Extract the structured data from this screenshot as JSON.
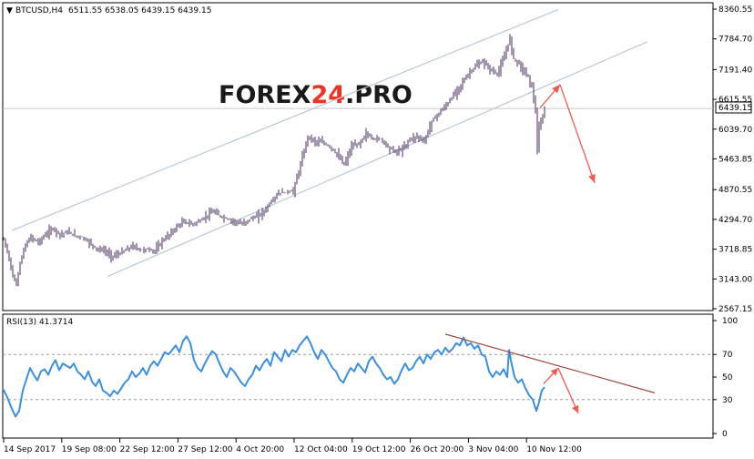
{
  "header": {
    "symbol": "BTCUSD,H4",
    "ohlc": "6511.55 6538.05 6439.15 6439.15"
  },
  "watermark": {
    "part1": "FOREX",
    "part2": "24",
    "part3": ".PRO"
  },
  "price_label": "6439.15",
  "rsi": {
    "label": "RSI(13) 41.3714"
  },
  "colors": {
    "bar": "#4a2b5c",
    "channel": "#b7c8d6",
    "rsi_line": "#3a8fe0",
    "trend": "#9c4a40",
    "arrow": "#f25a4f",
    "logo_dark": "#1a1a1a",
    "logo_accent": "#ef3323"
  },
  "chart_data": [
    {
      "type": "bar",
      "title": "BTCUSD,H4",
      "y_ticks": [
        "8360.55",
        "7784.70",
        "7191.40",
        "6615.55",
        "6039.70",
        "5463.85",
        "4870.55",
        "4294.70",
        "3718.85",
        "3143.00",
        "2567.15"
      ],
      "ylim": [
        2567.15,
        8360.55
      ],
      "x_ticks": [
        "14 Sep 2017",
        "19 Sep 08:00",
        "22 Sep 12:00",
        "27 Sep 12:00",
        "4 Oct 20:00",
        "12 Oct 04:00",
        "19 Oct 12:00",
        "26 Oct 20:00",
        "3 Nov 04:00",
        "10 Nov 12:00"
      ],
      "last_price": 6439.15,
      "close_path": [
        [
          0,
          3900
        ],
        [
          6,
          3550
        ],
        [
          10,
          3180
        ],
        [
          14,
          3050
        ],
        [
          18,
          3450
        ],
        [
          24,
          3800
        ],
        [
          30,
          3950
        ],
        [
          38,
          3850
        ],
        [
          46,
          4000
        ],
        [
          54,
          4120
        ],
        [
          62,
          4000
        ],
        [
          70,
          4050
        ],
        [
          78,
          3980
        ],
        [
          86,
          3950
        ],
        [
          94,
          3850
        ],
        [
          102,
          3720
        ],
        [
          110,
          3700
        ],
        [
          118,
          3580
        ],
        [
          126,
          3620
        ],
        [
          134,
          3700
        ],
        [
          142,
          3780
        ],
        [
          150,
          3700
        ],
        [
          158,
          3720
        ],
        [
          166,
          3680
        ],
        [
          174,
          3880
        ],
        [
          182,
          4000
        ],
        [
          190,
          4150
        ],
        [
          198,
          4250
        ],
        [
          206,
          4200
        ],
        [
          214,
          4250
        ],
        [
          222,
          4350
        ],
        [
          230,
          4450
        ],
        [
          238,
          4350
        ],
        [
          246,
          4300
        ],
        [
          254,
          4250
        ],
        [
          262,
          4200
        ],
        [
          270,
          4300
        ],
        [
          278,
          4350
        ],
        [
          286,
          4450
        ],
        [
          294,
          4650
        ],
        [
          302,
          4800
        ],
        [
          310,
          4820
        ],
        [
          318,
          4850
        ],
        [
          326,
          5350
        ],
        [
          334,
          5900
        ],
        [
          342,
          5800
        ],
        [
          350,
          5780
        ],
        [
          358,
          5700
        ],
        [
          366,
          5550
        ],
        [
          374,
          5350
        ],
        [
          382,
          5700
        ],
        [
          390,
          5750
        ],
        [
          398,
          5950
        ],
        [
          406,
          5850
        ],
        [
          414,
          5850
        ],
        [
          422,
          5700
        ],
        [
          430,
          5600
        ],
        [
          438,
          5650
        ],
        [
          446,
          5850
        ],
        [
          454,
          5900
        ],
        [
          462,
          5800
        ],
        [
          470,
          6200
        ],
        [
          478,
          6350
        ],
        [
          486,
          6500
        ],
        [
          494,
          6700
        ],
        [
          502,
          6900
        ],
        [
          510,
          7100
        ],
        [
          518,
          7250
        ],
        [
          526,
          7350
        ],
        [
          534,
          7200
        ],
        [
          542,
          7100
        ],
        [
          550,
          7450
        ],
        [
          556,
          7800
        ],
        [
          560,
          7400
        ],
        [
          564,
          7350
        ],
        [
          570,
          7200
        ],
        [
          576,
          7050
        ],
        [
          580,
          6850
        ],
        [
          584,
          6400
        ],
        [
          586,
          5600
        ],
        [
          588,
          6050
        ],
        [
          592,
          6300
        ],
        [
          595,
          6439
        ]
      ],
      "channel_upper": [
        [
          10,
          4080
        ],
        [
          610,
          8350
        ]
      ],
      "channel_lower": [
        [
          115,
          3190
        ],
        [
          708,
          7730
        ]
      ],
      "forecast_arrows": [
        [
          [
            590,
            6450
          ],
          [
            612,
            6900
          ]
        ],
        [
          [
            612,
            6900
          ],
          [
            650,
            5000
          ]
        ]
      ]
    },
    {
      "type": "line",
      "title": "RSI(13) 41.3714",
      "y_ticks": [
        "100",
        "70",
        "50",
        "30",
        "0"
      ],
      "ylim": [
        0,
        100
      ],
      "levels": [
        30,
        70
      ],
      "last_value": 41.3714,
      "path": [
        [
          0,
          40
        ],
        [
          5,
          32
        ],
        [
          10,
          22
        ],
        [
          14,
          15
        ],
        [
          18,
          20
        ],
        [
          22,
          38
        ],
        [
          26,
          48
        ],
        [
          30,
          58
        ],
        [
          34,
          52
        ],
        [
          38,
          47
        ],
        [
          42,
          55
        ],
        [
          46,
          57
        ],
        [
          50,
          52
        ],
        [
          54,
          60
        ],
        [
          58,
          65
        ],
        [
          62,
          56
        ],
        [
          66,
          62
        ],
        [
          70,
          60
        ],
        [
          74,
          58
        ],
        [
          78,
          62
        ],
        [
          82,
          55
        ],
        [
          86,
          52
        ],
        [
          90,
          48
        ],
        [
          94,
          55
        ],
        [
          98,
          46
        ],
        [
          102,
          42
        ],
        [
          106,
          48
        ],
        [
          110,
          38
        ],
        [
          114,
          36
        ],
        [
          118,
          33
        ],
        [
          122,
          38
        ],
        [
          126,
          35
        ],
        [
          130,
          40
        ],
        [
          134,
          45
        ],
        [
          138,
          48
        ],
        [
          142,
          55
        ],
        [
          146,
          50
        ],
        [
          150,
          53
        ],
        [
          154,
          58
        ],
        [
          158,
          52
        ],
        [
          162,
          60
        ],
        [
          166,
          64
        ],
        [
          170,
          60
        ],
        [
          174,
          66
        ],
        [
          178,
          72
        ],
        [
          182,
          70
        ],
        [
          186,
          74
        ],
        [
          190,
          78
        ],
        [
          194,
          72
        ],
        [
          198,
          82
        ],
        [
          202,
          86
        ],
        [
          206,
          80
        ],
        [
          210,
          65
        ],
        [
          214,
          58
        ],
        [
          218,
          55
        ],
        [
          222,
          62
        ],
        [
          226,
          68
        ],
        [
          230,
          73
        ],
        [
          234,
          70
        ],
        [
          238,
          62
        ],
        [
          242,
          55
        ],
        [
          246,
          50
        ],
        [
          250,
          58
        ],
        [
          254,
          55
        ],
        [
          258,
          50
        ],
        [
          262,
          45
        ],
        [
          266,
          42
        ],
        [
          270,
          48
        ],
        [
          274,
          52
        ],
        [
          278,
          60
        ],
        [
          282,
          56
        ],
        [
          286,
          62
        ],
        [
          290,
          66
        ],
        [
          294,
          60
        ],
        [
          298,
          72
        ],
        [
          302,
          68
        ],
        [
          306,
          64
        ],
        [
          310,
          74
        ],
        [
          314,
          68
        ],
        [
          318,
          74
        ],
        [
          322,
          72
        ],
        [
          326,
          78
        ],
        [
          330,
          82
        ],
        [
          334,
          86
        ],
        [
          338,
          80
        ],
        [
          342,
          72
        ],
        [
          346,
          66
        ],
        [
          350,
          74
        ],
        [
          354,
          70
        ],
        [
          358,
          64
        ],
        [
          362,
          58
        ],
        [
          366,
          55
        ],
        [
          370,
          48
        ],
        [
          374,
          45
        ],
        [
          378,
          52
        ],
        [
          382,
          58
        ],
        [
          386,
          55
        ],
        [
          390,
          62
        ],
        [
          394,
          58
        ],
        [
          398,
          54
        ],
        [
          402,
          64
        ],
        [
          406,
          68
        ],
        [
          410,
          62
        ],
        [
          414,
          58
        ],
        [
          418,
          52
        ],
        [
          422,
          48
        ],
        [
          426,
          50
        ],
        [
          430,
          44
        ],
        [
          434,
          48
        ],
        [
          438,
          56
        ],
        [
          442,
          62
        ],
        [
          446,
          56
        ],
        [
          450,
          58
        ],
        [
          454,
          64
        ],
        [
          458,
          68
        ],
        [
          462,
          62
        ],
        [
          466,
          70
        ],
        [
          470,
          66
        ],
        [
          474,
          72
        ],
        [
          478,
          74
        ],
        [
          482,
          70
        ],
        [
          486,
          76
        ],
        [
          490,
          72
        ],
        [
          494,
          75
        ],
        [
          498,
          80
        ],
        [
          502,
          78
        ],
        [
          506,
          85
        ],
        [
          510,
          78
        ],
        [
          514,
          80
        ],
        [
          518,
          75
        ],
        [
          522,
          78
        ],
        [
          526,
          70
        ],
        [
          530,
          68
        ],
        [
          534,
          55
        ],
        [
          538,
          50
        ],
        [
          542,
          55
        ],
        [
          546,
          52
        ],
        [
          550,
          57
        ],
        [
          554,
          50
        ],
        [
          556,
          74
        ],
        [
          558,
          65
        ],
        [
          562,
          50
        ],
        [
          566,
          45
        ],
        [
          570,
          48
        ],
        [
          574,
          40
        ],
        [
          578,
          34
        ],
        [
          582,
          30
        ],
        [
          586,
          20
        ],
        [
          589,
          28
        ],
        [
          592,
          38
        ],
        [
          595,
          41
        ]
      ],
      "trendline": [
        [
          486,
          88
        ],
        [
          716,
          36
        ]
      ],
      "forecast_arrows": [
        [
          [
            594,
            44
          ],
          [
            610,
            58
          ]
        ],
        [
          [
            610,
            58
          ],
          [
            632,
            18
          ]
        ]
      ]
    }
  ]
}
